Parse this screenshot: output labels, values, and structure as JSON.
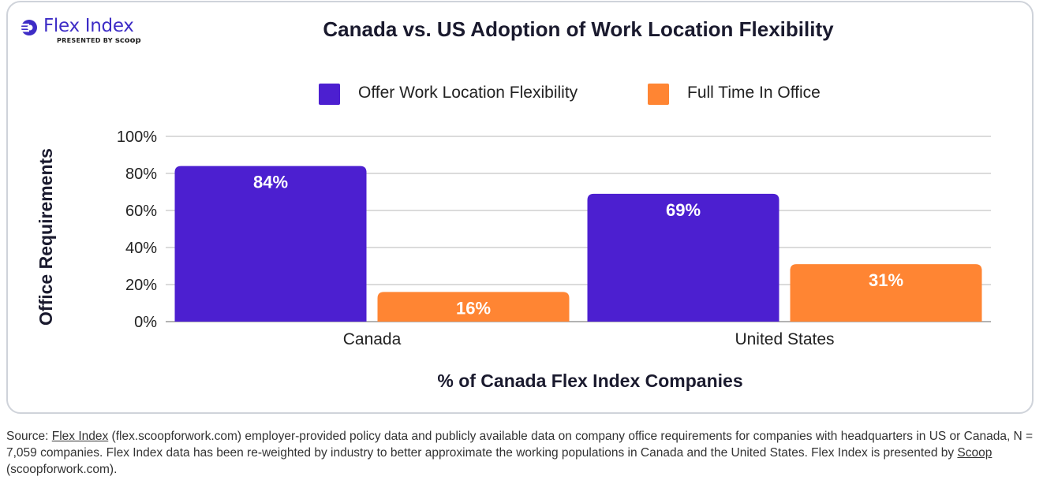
{
  "logo": {
    "name": "Flex Index",
    "presented_by": "PRESENTED BY",
    "brand": "scoop"
  },
  "colors": {
    "series_1": "#4c1fd0",
    "series_2": "#ff8533",
    "grid": "#cfcfcf",
    "logo_blue": "#3d2cc6"
  },
  "chart_data": {
    "type": "bar",
    "title": "Canada vs. US Adoption of Work Location Flexibility",
    "xlabel": "% of Canada Flex Index Companies",
    "ylabel": "Office Requirements",
    "categories": [
      "Canada",
      "United States"
    ],
    "series": [
      {
        "name": "Offer Work Location Flexibility",
        "values": [
          84,
          69
        ],
        "labels": [
          "84%",
          "69%"
        ],
        "color": "#4c1fd0"
      },
      {
        "name": "Full Time In Office",
        "values": [
          16,
          31
        ],
        "labels": [
          "16%",
          "31%"
        ],
        "color": "#ff8533"
      }
    ],
    "ylim": [
      0,
      100
    ],
    "yticks": [
      "0%",
      "20%",
      "40%",
      "60%",
      "80%",
      "100%"
    ],
    "grid": true,
    "legend_position": "top-center"
  },
  "footer": {
    "source_prefix": "Source: ",
    "source_link": "Flex Index",
    "source_text": " (flex.scoopforwork.com) employer-provided policy data and publicly available data on company office requirements for companies with headquarters in US or Canada, N = 7,059 companies. Flex Index data has been re-weighted by industry to better approximate the working populations in Canada and the United States. Flex Index is presented by ",
    "presenter_link": "Scoop",
    "presenter_text": " (scoopforwork.com)."
  }
}
